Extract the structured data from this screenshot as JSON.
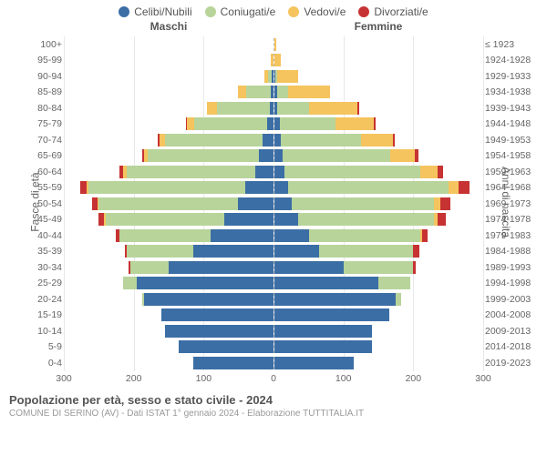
{
  "legend_items": [
    {
      "label": "Celibi/Nubili",
      "color": "#3b6ea5"
    },
    {
      "label": "Coniugati/e",
      "color": "#b8d49a"
    },
    {
      "label": "Vedovi/e",
      "color": "#f5c45e"
    },
    {
      "label": "Divorziati/e",
      "color": "#c73232"
    }
  ],
  "header_male": "Maschi",
  "header_female": "Femmine",
  "y_left_title": "Fasce di età",
  "y_right_title": "Anni di nascita",
  "x_ticks": [
    300,
    200,
    100,
    0,
    100,
    200,
    300
  ],
  "x_max": 300,
  "footer_title": "Popolazione per età, sesso e stato civile - 2024",
  "footer_sub": "COMUNE DI SERINO (AV) - Dati ISTAT 1° gennaio 2024 - Elaborazione TUTTITALIA.IT",
  "age_label_fontsize": 10.5,
  "tick_fontsize": 10.5,
  "legend_fontsize": 12,
  "background_color": "#ffffff",
  "grid_color": "#e8e8e8",
  "rows": [
    {
      "age": "100+",
      "birth": "≤ 1923",
      "m": {
        "c": 0,
        "co": 0,
        "v": 0,
        "d": 0
      },
      "f": {
        "c": 0,
        "co": 0,
        "v": 3,
        "d": 0
      }
    },
    {
      "age": "95-99",
      "birth": "1924-1928",
      "m": {
        "c": 0,
        "co": 0,
        "v": 3,
        "d": 0
      },
      "f": {
        "c": 0,
        "co": 0,
        "v": 10,
        "d": 0
      }
    },
    {
      "age": "90-94",
      "birth": "1929-1933",
      "m": {
        "c": 2,
        "co": 5,
        "v": 6,
        "d": 0
      },
      "f": {
        "c": 2,
        "co": 3,
        "v": 30,
        "d": 0
      }
    },
    {
      "age": "85-89",
      "birth": "1934-1938",
      "m": {
        "c": 3,
        "co": 35,
        "v": 12,
        "d": 0
      },
      "f": {
        "c": 5,
        "co": 15,
        "v": 60,
        "d": 0
      }
    },
    {
      "age": "80-84",
      "birth": "1939-1943",
      "m": {
        "c": 5,
        "co": 75,
        "v": 15,
        "d": 0
      },
      "f": {
        "c": 5,
        "co": 45,
        "v": 70,
        "d": 2
      }
    },
    {
      "age": "75-79",
      "birth": "1944-1948",
      "m": {
        "c": 8,
        "co": 105,
        "v": 10,
        "d": 2
      },
      "f": {
        "c": 8,
        "co": 80,
        "v": 55,
        "d": 3
      }
    },
    {
      "age": "70-74",
      "birth": "1949-1953",
      "m": {
        "c": 15,
        "co": 140,
        "v": 8,
        "d": 3
      },
      "f": {
        "c": 10,
        "co": 115,
        "v": 45,
        "d": 3
      }
    },
    {
      "age": "65-69",
      "birth": "1954-1958",
      "m": {
        "c": 20,
        "co": 160,
        "v": 5,
        "d": 3
      },
      "f": {
        "c": 12,
        "co": 155,
        "v": 35,
        "d": 5
      }
    },
    {
      "age": "60-64",
      "birth": "1959-1963",
      "m": {
        "c": 25,
        "co": 185,
        "v": 5,
        "d": 5
      },
      "f": {
        "c": 15,
        "co": 195,
        "v": 25,
        "d": 8
      }
    },
    {
      "age": "55-59",
      "birth": "1964-1968",
      "m": {
        "c": 40,
        "co": 225,
        "v": 3,
        "d": 8
      },
      "f": {
        "c": 20,
        "co": 230,
        "v": 15,
        "d": 15
      }
    },
    {
      "age": "50-54",
      "birth": "1969-1973",
      "m": {
        "c": 50,
        "co": 200,
        "v": 2,
        "d": 8
      },
      "f": {
        "c": 25,
        "co": 205,
        "v": 8,
        "d": 15
      }
    },
    {
      "age": "45-49",
      "birth": "1974-1978",
      "m": {
        "c": 70,
        "co": 170,
        "v": 2,
        "d": 8
      },
      "f": {
        "c": 35,
        "co": 195,
        "v": 5,
        "d": 12
      }
    },
    {
      "age": "40-44",
      "birth": "1979-1983",
      "m": {
        "c": 90,
        "co": 130,
        "v": 0,
        "d": 5
      },
      "f": {
        "c": 50,
        "co": 160,
        "v": 2,
        "d": 8
      }
    },
    {
      "age": "35-39",
      "birth": "1984-1988",
      "m": {
        "c": 115,
        "co": 95,
        "v": 0,
        "d": 3
      },
      "f": {
        "c": 65,
        "co": 135,
        "v": 0,
        "d": 8
      }
    },
    {
      "age": "30-34",
      "birth": "1989-1993",
      "m": {
        "c": 150,
        "co": 55,
        "v": 0,
        "d": 2
      },
      "f": {
        "c": 100,
        "co": 100,
        "v": 0,
        "d": 3
      }
    },
    {
      "age": "25-29",
      "birth": "1994-1998",
      "m": {
        "c": 195,
        "co": 20,
        "v": 0,
        "d": 0
      },
      "f": {
        "c": 150,
        "co": 45,
        "v": 0,
        "d": 0
      }
    },
    {
      "age": "20-24",
      "birth": "1999-2003",
      "m": {
        "c": 185,
        "co": 3,
        "v": 0,
        "d": 0
      },
      "f": {
        "c": 175,
        "co": 8,
        "v": 0,
        "d": 0
      }
    },
    {
      "age": "15-19",
      "birth": "2004-2008",
      "m": {
        "c": 160,
        "co": 0,
        "v": 0,
        "d": 0
      },
      "f": {
        "c": 165,
        "co": 0,
        "v": 0,
        "d": 0
      }
    },
    {
      "age": "10-14",
      "birth": "2009-2013",
      "m": {
        "c": 155,
        "co": 0,
        "v": 0,
        "d": 0
      },
      "f": {
        "c": 140,
        "co": 0,
        "v": 0,
        "d": 0
      }
    },
    {
      "age": "5-9",
      "birth": "2014-2018",
      "m": {
        "c": 135,
        "co": 0,
        "v": 0,
        "d": 0
      },
      "f": {
        "c": 140,
        "co": 0,
        "v": 0,
        "d": 0
      }
    },
    {
      "age": "0-4",
      "birth": "2019-2023",
      "m": {
        "c": 115,
        "co": 0,
        "v": 0,
        "d": 0
      },
      "f": {
        "c": 115,
        "co": 0,
        "v": 0,
        "d": 0
      }
    }
  ]
}
